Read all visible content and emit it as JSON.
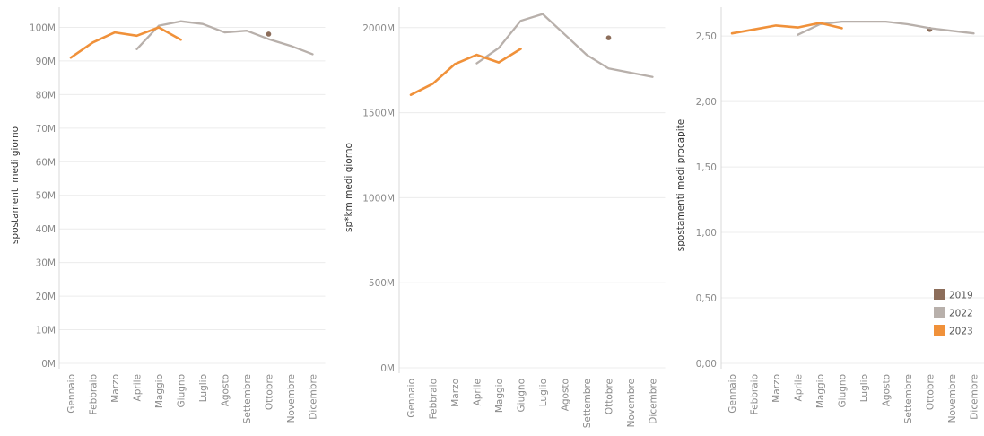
{
  "chart_data": [
    {
      "type": "line",
      "ylabel": "spostamenti medi giorno",
      "yticks": [
        "0M",
        "10M",
        "20M",
        "30M",
        "40M",
        "50M",
        "60M",
        "70M",
        "80M",
        "90M",
        "100M"
      ],
      "ylim": [
        0,
        106
      ],
      "categories": [
        "Gennaio",
        "Febbraio",
        "Marzo",
        "Aprile",
        "Maggio",
        "Giugno",
        "Luglio",
        "Agosto",
        "Settembre",
        "Ottobre",
        "Novembre",
        "Dicembre"
      ],
      "series": [
        {
          "name": "2019",
          "color": "#8c6d5a",
          "values": [
            null,
            null,
            null,
            null,
            null,
            null,
            null,
            null,
            null,
            98,
            null,
            null
          ]
        },
        {
          "name": "2022",
          "color": "#b8b0ab",
          "values": [
            null,
            null,
            null,
            93.5,
            100.5,
            101.8,
            101,
            98.5,
            99,
            96.5,
            94.5,
            92
          ]
        },
        {
          "name": "2023",
          "color": "#f0913a",
          "values": [
            91,
            95.5,
            98.5,
            97.5,
            100,
            96.3,
            null,
            null,
            null,
            null,
            null,
            null
          ]
        }
      ]
    },
    {
      "type": "line",
      "ylabel": "sp*km medi giorno",
      "yticks": [
        "0M",
        "500M",
        "1000M",
        "1500M",
        "2000M"
      ],
      "ylim": [
        0,
        2120
      ],
      "categories": [
        "Gennaio",
        "Febbraio",
        "Marzo",
        "Aprile",
        "Maggio",
        "Giugno",
        "Luglio",
        "Agosto",
        "Settembre",
        "Ottobre",
        "Novembre",
        "Dicembre"
      ],
      "series": [
        {
          "name": "2019",
          "color": "#8c6d5a",
          "values": [
            null,
            null,
            null,
            null,
            null,
            null,
            null,
            null,
            null,
            1940,
            null,
            null
          ]
        },
        {
          "name": "2022",
          "color": "#b8b0ab",
          "values": [
            null,
            null,
            null,
            1790,
            1880,
            2040,
            2080,
            1960,
            1840,
            1760,
            1735,
            1710
          ]
        },
        {
          "name": "2023",
          "color": "#f0913a",
          "values": [
            1605,
            1670,
            1785,
            1840,
            1795,
            1875,
            null,
            null,
            null,
            null,
            null,
            null
          ]
        }
      ]
    },
    {
      "type": "line",
      "ylabel": "spostamenti medi procapite",
      "yticks": [
        "0,00",
        "0,50",
        "1,00",
        "1,50",
        "2,00",
        "2,50"
      ],
      "ylim": [
        0,
        2.72
      ],
      "categories": [
        "Gennaio",
        "Febbraio",
        "Marzo",
        "Aprile",
        "Maggio",
        "Giugno",
        "Luglio",
        "Agosto",
        "Settembre",
        "Ottobre",
        "Novembre",
        "Dicembre"
      ],
      "series": [
        {
          "name": "2019",
          "color": "#8c6d5a",
          "values": [
            null,
            null,
            null,
            null,
            null,
            null,
            null,
            null,
            null,
            2.55,
            null,
            null
          ]
        },
        {
          "name": "2022",
          "color": "#b8b0ab",
          "values": [
            null,
            null,
            null,
            2.51,
            2.59,
            2.61,
            2.61,
            2.61,
            2.59,
            2.56,
            2.54,
            2.52
          ]
        },
        {
          "name": "2023",
          "color": "#f0913a",
          "values": [
            2.52,
            2.55,
            2.58,
            2.565,
            2.6,
            2.56,
            null,
            null,
            null,
            null,
            null,
            null
          ]
        }
      ]
    }
  ],
  "legend": [
    {
      "label": "2019",
      "color": "#8c6d5a"
    },
    {
      "label": "2022",
      "color": "#b8b0ab"
    },
    {
      "label": "2023",
      "color": "#f0913a"
    }
  ]
}
